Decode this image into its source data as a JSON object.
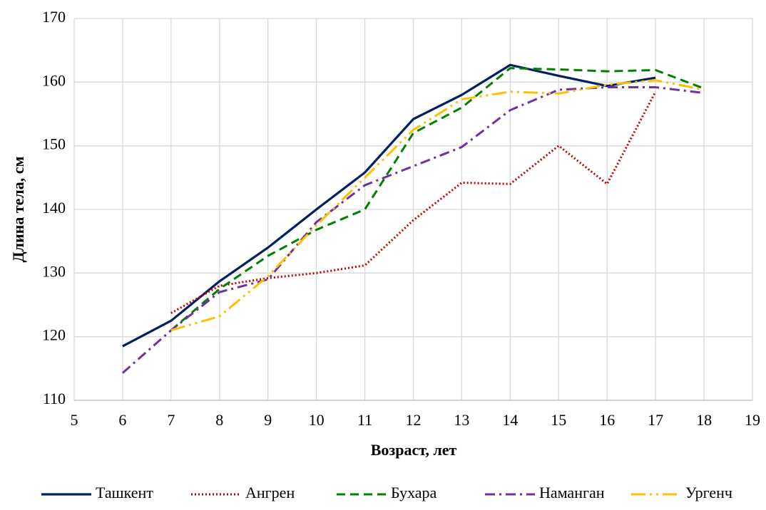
{
  "chart_data": {
    "type": "line",
    "xlabel": "Возраст, лет",
    "ylabel": "Длина тела, см",
    "x": [
      6,
      7,
      8,
      9,
      10,
      11,
      12,
      13,
      14,
      15,
      16,
      17,
      18
    ],
    "xlim": [
      5,
      19
    ],
    "xticks": [
      5,
      6,
      7,
      8,
      9,
      10,
      11,
      12,
      13,
      14,
      15,
      16,
      17,
      18,
      19
    ],
    "ylim": [
      110,
      170
    ],
    "yticks": [
      110,
      120,
      130,
      140,
      150,
      160,
      170
    ],
    "grid": true,
    "legend": "bottom",
    "series": [
      {
        "name": "Ташкент",
        "color": "#002060",
        "style": "solid",
        "values": [
          118.5,
          122.5,
          128.7,
          134,
          140,
          145.8,
          154.2,
          158,
          162.7,
          161,
          159.4,
          160.7,
          null
        ]
      },
      {
        "name": "Ангрен",
        "color": "#c00000",
        "style": "dotted",
        "values": [
          null,
          123.7,
          128,
          129.2,
          130,
          131.2,
          138.3,
          144.2,
          144,
          150,
          144,
          158.5,
          null
        ]
      },
      {
        "name": "Бухара",
        "color": "#008000",
        "style": "dashed",
        "values": [
          null,
          121,
          127.5,
          132.7,
          136.8,
          140,
          152,
          156,
          162.2,
          162,
          161.7,
          161.9,
          159
        ]
      },
      {
        "name": "Наманган",
        "color": "#7030a0",
        "style": "dashdot",
        "values": [
          114.3,
          121,
          127,
          129,
          138,
          143.8,
          146.8,
          149.8,
          155.6,
          158.8,
          159.2,
          159.2,
          158.3
        ]
      },
      {
        "name": "Ургенч",
        "color": "#ffc000",
        "style": "longdashdotdot",
        "values": [
          null,
          121,
          123.2,
          129.5,
          137.5,
          145,
          152.5,
          157.3,
          158.5,
          158.2,
          159.6,
          160.3,
          158.8
        ]
      }
    ]
  }
}
